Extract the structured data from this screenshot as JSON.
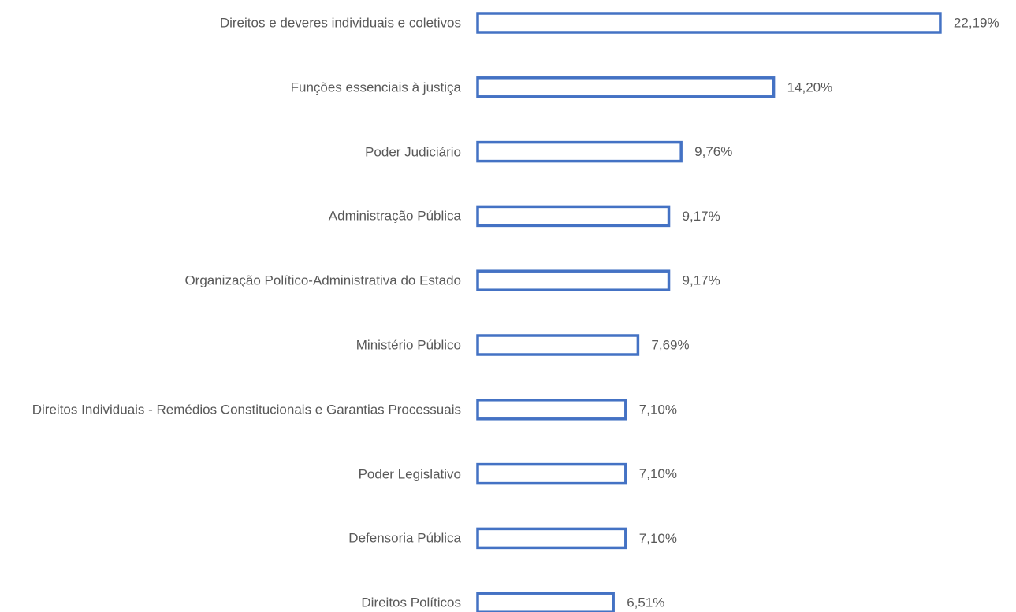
{
  "chart_data": {
    "type": "bar",
    "orientation": "horizontal",
    "categories": [
      "Direitos e deveres individuais e coletivos",
      "Funções essenciais à justiça",
      "Poder Judiciário",
      "Administração Pública",
      "Organização Político-Administrativa do Estado",
      "Ministério Público",
      "Direitos Individuais - Remédios Constitucionais e Garantias Processuais",
      "Poder Legislativo",
      "Defensoria Pública",
      "Direitos Políticos"
    ],
    "values": [
      22.19,
      14.2,
      9.76,
      9.17,
      9.17,
      7.69,
      7.1,
      7.1,
      7.1,
      6.51
    ],
    "value_labels": [
      "22,19%",
      "14,20%",
      "9,76%",
      "9,17%",
      "9,17%",
      "7,69%",
      "7,10%",
      "7,10%",
      "7,10%",
      "6,51%"
    ],
    "color": "#4472c4"
  }
}
